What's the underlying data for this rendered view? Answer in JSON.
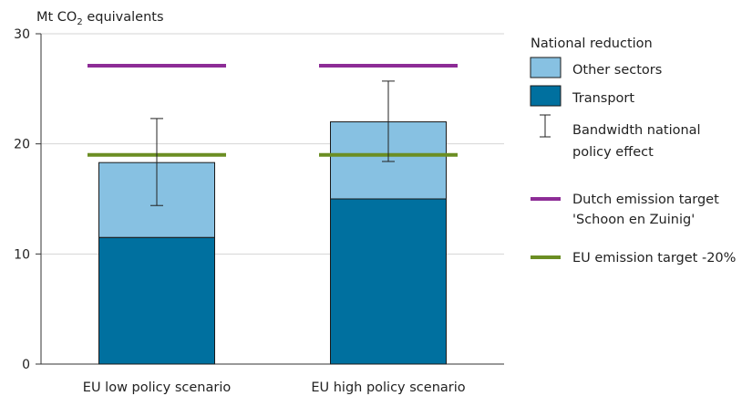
{
  "chart_data": {
    "type": "bar",
    "stacked": true,
    "ylabel": {
      "prefix": "Mt CO",
      "subscript": "2",
      "suffix": " equivalents"
    },
    "ylim": [
      0,
      30
    ],
    "yticks": [
      0,
      10,
      20,
      30
    ],
    "grid": true,
    "categories": [
      "EU low policy scenario",
      "EU high policy scenario"
    ],
    "series": [
      {
        "name": "Transport",
        "values": [
          11.5,
          15.0
        ],
        "color": "#00709f"
      },
      {
        "name": "Other sectors",
        "values": [
          6.8,
          7.0
        ],
        "color": "#87c1e2"
      }
    ],
    "error_bars": [
      {
        "low": 14.4,
        "high": 22.3
      },
      {
        "low": 18.4,
        "high": 25.7
      }
    ],
    "targets": [
      {
        "name": "Dutch emission target 'Schoon en Zuinig'",
        "value": 27.1,
        "color": "#8d2c96"
      },
      {
        "name": "EU emission target -20%",
        "value": 19.0,
        "color": "#6b8e23"
      }
    ],
    "legend": {
      "title": "National reduction",
      "placement": "right",
      "items": [
        {
          "kind": "box",
          "label": "Other sectors",
          "color": "#87c1e2"
        },
        {
          "kind": "box",
          "label": "Transport",
          "color": "#00709f"
        },
        {
          "kind": "errorbar",
          "label": [
            "Bandwidth national",
            "policy effect"
          ]
        },
        {
          "kind": "line",
          "label": [
            "Dutch emission target",
            "'Schoon en Zuinig'"
          ],
          "color": "#8d2c96"
        },
        {
          "kind": "line",
          "label": [
            "EU emission target -20%"
          ],
          "color": "#6b8e23"
        }
      ]
    }
  }
}
